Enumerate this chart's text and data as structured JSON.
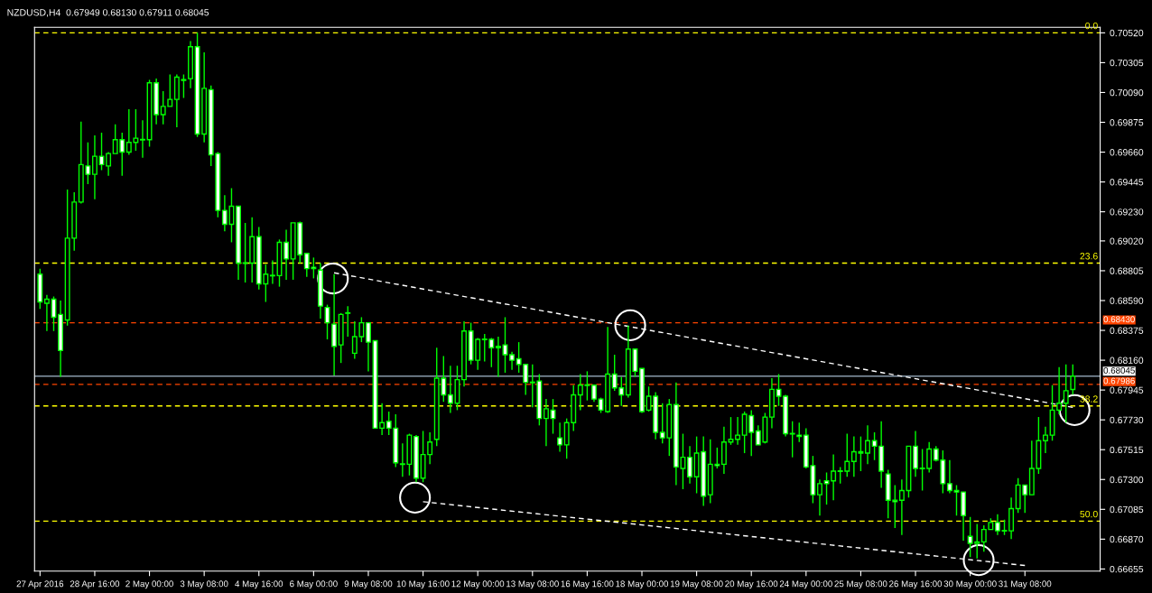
{
  "chart_data": {
    "type": "candlestick",
    "title": "NZDUSD,H4  0.67949 0.68130 0.67911 0.68045",
    "categories": [
      "27 Apr 2016",
      null,
      null,
      null,
      null,
      null,
      null,
      null,
      "28 Apr 16:00",
      null,
      null,
      null,
      null,
      null,
      null,
      null,
      "2 May 00:00",
      null,
      null,
      null,
      null,
      null,
      null,
      null,
      "3 May 08:00",
      null,
      null,
      null,
      null,
      null,
      null,
      null,
      "4 May 16:00",
      null,
      null,
      null,
      null,
      null,
      null,
      null,
      "6 May 00:00",
      null,
      null,
      null,
      null,
      null,
      null,
      null,
      "9 May 08:00",
      null,
      null,
      null,
      null,
      null,
      null,
      null,
      "10 May 16:00",
      null,
      null,
      null,
      null,
      null,
      null,
      null,
      "12 May 00:00",
      null,
      null,
      null,
      null,
      null,
      null,
      null,
      "13 May 08:00",
      null,
      null,
      null,
      null,
      null,
      null,
      null,
      "16 May 16:00",
      null,
      null,
      null,
      null,
      null,
      null,
      null,
      "18 May 00:00",
      null,
      null,
      null,
      null,
      null,
      null,
      null,
      "19 May 08:00",
      null,
      null,
      null,
      null,
      null,
      null,
      null,
      "20 May 16:00",
      null,
      null,
      null,
      null,
      null,
      null,
      null,
      "24 May 00:00",
      null,
      null,
      null,
      null,
      null,
      null,
      null,
      "25 May 08:00",
      null,
      null,
      null,
      null,
      null,
      null,
      null,
      "26 May 16:00",
      null,
      null,
      null,
      null,
      null,
      null,
      null,
      "30 May 00:00",
      null,
      null,
      null,
      null,
      null,
      null,
      null,
      "31 May 08:00",
      null,
      null,
      null,
      null,
      null,
      null,
      null
    ],
    "color": "#00ff00",
    "ohlc": [
      [
        0.6878,
        0.6882,
        0.6853,
        0.6858
      ],
      [
        0.6857,
        0.6863,
        0.6837,
        0.686
      ],
      [
        0.686,
        0.6862,
        0.6837,
        0.6847
      ],
      [
        0.6849,
        0.6859,
        0.6804,
        0.6823
      ],
      [
        0.6845,
        0.6939,
        0.6841,
        0.6904
      ],
      [
        0.6904,
        0.6937,
        0.6895,
        0.693
      ],
      [
        0.693,
        0.6988,
        0.6929,
        0.6957
      ],
      [
        0.6956,
        0.6973,
        0.6943,
        0.695
      ],
      [
        0.695,
        0.6978,
        0.6932,
        0.6963
      ],
      [
        0.6963,
        0.698,
        0.6953,
        0.6957
      ],
      [
        0.6956,
        0.6966,
        0.6949,
        0.6965
      ],
      [
        0.6965,
        0.6986,
        0.6965,
        0.6975
      ],
      [
        0.6975,
        0.698,
        0.6949,
        0.6966
      ],
      [
        0.6966,
        0.6997,
        0.6964,
        0.6973
      ],
      [
        0.6973,
        0.6997,
        0.6967,
        0.6976
      ],
      [
        0.6975,
        0.6989,
        0.6962,
        0.6975
      ],
      [
        0.6975,
        0.7018,
        0.697,
        0.7016
      ],
      [
        0.7016,
        0.7019,
        0.6986,
        0.6993
      ],
      [
        0.6993,
        0.701,
        0.6986,
        0.6999
      ],
      [
        0.6999,
        0.7022,
        0.6999,
        0.7004
      ],
      [
        0.7004,
        0.7022,
        0.6984,
        0.702
      ],
      [
        0.7018,
        0.7022,
        0.7005,
        0.7018
      ],
      [
        0.7019,
        0.7046,
        0.7012,
        0.7042
      ],
      [
        0.7042,
        0.7052,
        0.6977,
        0.6979
      ],
      [
        0.6979,
        0.7038,
        0.6973,
        0.7012
      ],
      [
        0.7011,
        0.7014,
        0.6956,
        0.6964
      ],
      [
        0.6965,
        0.6966,
        0.6919,
        0.6924
      ],
      [
        0.6924,
        0.6935,
        0.6909,
        0.6914
      ],
      [
        0.6914,
        0.694,
        0.6901,
        0.6927
      ],
      [
        0.6927,
        0.6927,
        0.6874,
        0.6886
      ],
      [
        0.6886,
        0.6915,
        0.6872,
        0.6886
      ],
      [
        0.6886,
        0.6919,
        0.6872,
        0.6905
      ],
      [
        0.6905,
        0.6912,
        0.6867,
        0.6871
      ],
      [
        0.6871,
        0.6885,
        0.6858,
        0.6878
      ],
      [
        0.6877,
        0.6888,
        0.6871,
        0.6877
      ],
      [
        0.6877,
        0.6903,
        0.6869,
        0.6901
      ],
      [
        0.6901,
        0.691,
        0.6874,
        0.6889
      ],
      [
        0.6889,
        0.6915,
        0.6874,
        0.6915
      ],
      [
        0.6915,
        0.6916,
        0.6886,
        0.6892
      ],
      [
        0.6893,
        0.6893,
        0.6876,
        0.6882
      ],
      [
        0.6883,
        0.689,
        0.6875,
        0.6882
      ],
      [
        0.6881,
        0.6886,
        0.6846,
        0.6855
      ],
      [
        0.6854,
        0.6856,
        0.6831,
        0.6843
      ],
      [
        0.6842,
        0.6878,
        0.6805,
        0.6826
      ],
      [
        0.6827,
        0.685,
        0.6814,
        0.6849
      ],
      [
        0.685,
        0.6855,
        0.6833,
        0.685
      ],
      [
        0.6821,
        0.6844,
        0.6817,
        0.6833
      ],
      [
        0.6833,
        0.6847,
        0.6829,
        0.6843
      ],
      [
        0.6843,
        0.6843,
        0.6808,
        0.6829
      ],
      [
        0.683,
        0.683,
        0.6767,
        0.6767
      ],
      [
        0.6767,
        0.6785,
        0.6762,
        0.6771
      ],
      [
        0.6772,
        0.6779,
        0.6762,
        0.6767
      ],
      [
        0.6767,
        0.6777,
        0.6739,
        0.6742
      ],
      [
        0.6741,
        0.6756,
        0.6732,
        0.6741
      ],
      [
        0.6741,
        0.6763,
        0.6733,
        0.6762
      ],
      [
        0.6761,
        0.6762,
        0.6728,
        0.6731
      ],
      [
        0.6731,
        0.6765,
        0.6728,
        0.6748
      ],
      [
        0.6748,
        0.6764,
        0.6741,
        0.6757
      ],
      [
        0.6759,
        0.6825,
        0.6754,
        0.6803
      ],
      [
        0.6803,
        0.6819,
        0.6786,
        0.6791
      ],
      [
        0.6791,
        0.6812,
        0.6778,
        0.6785
      ],
      [
        0.6785,
        0.6812,
        0.678,
        0.6802
      ],
      [
        0.6802,
        0.6844,
        0.6797,
        0.6837
      ],
      [
        0.6837,
        0.6843,
        0.6813,
        0.6816
      ],
      [
        0.6816,
        0.6832,
        0.6809,
        0.6831
      ],
      [
        0.6831,
        0.6835,
        0.6815,
        0.6831
      ],
      [
        0.6831,
        0.6832,
        0.6811,
        0.6825
      ],
      [
        0.6826,
        0.6833,
        0.6804,
        0.6825
      ],
      [
        0.6827,
        0.6847,
        0.6807,
        0.682
      ],
      [
        0.682,
        0.6822,
        0.6809,
        0.6816
      ],
      [
        0.6817,
        0.6829,
        0.6807,
        0.6813
      ],
      [
        0.6813,
        0.6813,
        0.6791,
        0.68
      ],
      [
        0.68,
        0.6813,
        0.6782,
        0.68
      ],
      [
        0.6801,
        0.6806,
        0.6769,
        0.6774
      ],
      [
        0.6774,
        0.6788,
        0.6754,
        0.6781
      ],
      [
        0.678,
        0.6788,
        0.6763,
        0.6774
      ],
      [
        0.676,
        0.6771,
        0.675,
        0.6755
      ],
      [
        0.6755,
        0.6774,
        0.6745,
        0.6771
      ],
      [
        0.6771,
        0.6798,
        0.6765,
        0.6791
      ],
      [
        0.6791,
        0.6806,
        0.678,
        0.6798
      ],
      [
        0.6798,
        0.6808,
        0.6787,
        0.6798
      ],
      [
        0.6798,
        0.6798,
        0.6786,
        0.6788
      ],
      [
        0.6788,
        0.6789,
        0.6778,
        0.678
      ],
      [
        0.6779,
        0.684,
        0.6778,
        0.6806
      ],
      [
        0.6806,
        0.682,
        0.6794,
        0.6796
      ],
      [
        0.6796,
        0.6804,
        0.6783,
        0.6791
      ],
      [
        0.6791,
        0.6841,
        0.6789,
        0.6824
      ],
      [
        0.6824,
        0.6824,
        0.6804,
        0.6808
      ],
      [
        0.681,
        0.681,
        0.6778,
        0.6779
      ],
      [
        0.678,
        0.6797,
        0.6779,
        0.679
      ],
      [
        0.679,
        0.6793,
        0.6759,
        0.6764
      ],
      [
        0.6764,
        0.6785,
        0.6756,
        0.676
      ],
      [
        0.676,
        0.6788,
        0.6747,
        0.6784
      ],
      [
        0.6784,
        0.68,
        0.6726,
        0.6739
      ],
      [
        0.6738,
        0.6763,
        0.6723,
        0.6746
      ],
      [
        0.6746,
        0.6754,
        0.6727,
        0.6732
      ],
      [
        0.6732,
        0.6761,
        0.672,
        0.6749
      ],
      [
        0.675,
        0.6761,
        0.6711,
        0.6718
      ],
      [
        0.6719,
        0.6759,
        0.6713,
        0.6741
      ],
      [
        0.6741,
        0.6753,
        0.6738,
        0.674
      ],
      [
        0.6741,
        0.6768,
        0.6734,
        0.6757
      ],
      [
        0.6757,
        0.6775,
        0.6755,
        0.6759
      ],
      [
        0.6759,
        0.6775,
        0.6755,
        0.6762
      ],
      [
        0.6762,
        0.6779,
        0.6749,
        0.6777
      ],
      [
        0.6776,
        0.678,
        0.6747,
        0.6764
      ],
      [
        0.6765,
        0.6769,
        0.6755,
        0.6755
      ],
      [
        0.6757,
        0.6778,
        0.6756,
        0.6775
      ],
      [
        0.6775,
        0.6803,
        0.6767,
        0.6795
      ],
      [
        0.6795,
        0.6806,
        0.6783,
        0.679
      ],
      [
        0.679,
        0.6791,
        0.6761,
        0.6763
      ],
      [
        0.6763,
        0.6772,
        0.6746,
        0.6763
      ],
      [
        0.6762,
        0.6771,
        0.6757,
        0.6761
      ],
      [
        0.6762,
        0.6767,
        0.6738,
        0.6739
      ],
      [
        0.674,
        0.6747,
        0.6713,
        0.6719
      ],
      [
        0.6719,
        0.673,
        0.6704,
        0.6727
      ],
      [
        0.6729,
        0.6735,
        0.6712,
        0.6727
      ],
      [
        0.6729,
        0.6748,
        0.6715,
        0.6736
      ],
      [
        0.6736,
        0.6739,
        0.6727,
        0.6736
      ],
      [
        0.6736,
        0.6763,
        0.6732,
        0.6743
      ],
      [
        0.6743,
        0.6761,
        0.6732,
        0.675
      ],
      [
        0.6749,
        0.6761,
        0.6736,
        0.675
      ],
      [
        0.6749,
        0.6769,
        0.6741,
        0.6758
      ],
      [
        0.6758,
        0.6764,
        0.6744,
        0.6754
      ],
      [
        0.6754,
        0.6772,
        0.6724,
        0.6736
      ],
      [
        0.6734,
        0.6737,
        0.6702,
        0.6715
      ],
      [
        0.6715,
        0.6726,
        0.6695,
        0.6714
      ],
      [
        0.6715,
        0.673,
        0.669,
        0.6722
      ],
      [
        0.6722,
        0.6754,
        0.6717,
        0.6754
      ],
      [
        0.6754,
        0.6765,
        0.6732,
        0.6738
      ],
      [
        0.6738,
        0.6752,
        0.6722,
        0.6738
      ],
      [
        0.6738,
        0.6757,
        0.6735,
        0.6752
      ],
      [
        0.6752,
        0.6754,
        0.6743,
        0.6744
      ],
      [
        0.6744,
        0.6751,
        0.672,
        0.6727
      ],
      [
        0.6727,
        0.6744,
        0.672,
        0.6722
      ],
      [
        0.6722,
        0.6726,
        0.6704,
        0.6721
      ],
      [
        0.6721,
        0.6721,
        0.6686,
        0.6704
      ],
      [
        0.6689,
        0.6703,
        0.6674,
        0.6684
      ],
      [
        0.6684,
        0.6698,
        0.6673,
        0.6685
      ],
      [
        0.6685,
        0.6697,
        0.6678,
        0.6694
      ],
      [
        0.6694,
        0.6702,
        0.6694,
        0.6699
      ],
      [
        0.6699,
        0.6705,
        0.669,
        0.6693
      ],
      [
        0.6693,
        0.6701,
        0.669,
        0.6693
      ],
      [
        0.6693,
        0.6717,
        0.6687,
        0.6709
      ],
      [
        0.6709,
        0.6731,
        0.6706,
        0.6726
      ],
      [
        0.6726,
        0.6726,
        0.6706,
        0.6719
      ],
      [
        0.6719,
        0.6758,
        0.6719,
        0.6738
      ],
      [
        0.6738,
        0.6775,
        0.6734,
        0.6758
      ],
      [
        0.6758,
        0.6768,
        0.6749,
        0.6762
      ],
      [
        0.6762,
        0.6798,
        0.6758,
        0.678
      ],
      [
        0.678,
        0.6811,
        0.6777,
        0.6785
      ],
      [
        0.6785,
        0.6813,
        0.6771,
        0.6794
      ],
      [
        0.67949,
        0.6813,
        0.67911,
        0.68045
      ]
    ],
    "series": [
      {
        "type": "line",
        "color": "#ffffff",
        "line_style": "dashed",
        "values": [
          null,
          null,
          null,
          null,
          null,
          null,
          null,
          null,
          null,
          null,
          null,
          null,
          null,
          null,
          null,
          null,
          null,
          null,
          null,
          null,
          null,
          null,
          null,
          null,
          null,
          null,
          null,
          null,
          null,
          null,
          null,
          null,
          null,
          null,
          null,
          null,
          null,
          null,
          null,
          null,
          null,
          null,
          null,
          0.6879,
          null,
          null,
          null,
          null,
          null,
          null,
          null,
          null,
          null,
          null,
          null,
          null,
          null,
          null,
          null,
          null,
          null,
          null,
          null,
          null,
          null,
          null,
          null,
          null,
          null,
          null,
          null,
          null,
          null,
          null,
          null,
          null,
          null,
          null,
          null,
          null,
          null,
          null,
          null,
          null,
          null,
          null,
          null,
          null,
          null,
          null,
          null,
          null,
          null,
          null,
          null,
          null,
          null,
          null,
          null,
          null,
          null,
          null,
          null,
          null,
          null,
          null,
          null,
          null,
          null,
          null,
          null,
          null,
          null,
          null,
          null,
          null,
          null,
          null,
          null,
          null,
          null,
          null,
          null,
          null,
          null,
          null,
          null,
          null,
          null,
          null,
          null,
          null,
          null,
          null,
          null,
          null,
          null,
          null,
          null,
          null,
          null,
          null,
          null,
          null,
          null,
          null,
          null,
          null,
          null,
          null,
          null,
          0.6782
        ]
      },
      {
        "type": "line",
        "color": "#ffffff",
        "line_style": "dashed",
        "values": [
          null,
          null,
          null,
          null,
          null,
          null,
          null,
          null,
          null,
          null,
          null,
          null,
          null,
          null,
          null,
          null,
          null,
          null,
          null,
          null,
          null,
          null,
          null,
          null,
          null,
          null,
          null,
          null,
          null,
          null,
          null,
          null,
          null,
          null,
          null,
          null,
          null,
          null,
          null,
          null,
          null,
          null,
          null,
          null,
          null,
          null,
          null,
          null,
          null,
          null,
          null,
          null,
          null,
          null,
          null,
          null,
          0.6714,
          null,
          null,
          null,
          null,
          null,
          null,
          null,
          null,
          null,
          null,
          null,
          null,
          null,
          null,
          null,
          null,
          null,
          null,
          null,
          null,
          null,
          null,
          null,
          null,
          null,
          null,
          null,
          null,
          null,
          null,
          null,
          null,
          null,
          null,
          null,
          null,
          null,
          null,
          null,
          null,
          null,
          null,
          null,
          null,
          null,
          null,
          null,
          null,
          null,
          null,
          null,
          null,
          null,
          null,
          null,
          null,
          null,
          null,
          null,
          null,
          null,
          null,
          null,
          null,
          null,
          null,
          null,
          null,
          null,
          null,
          null,
          null,
          null,
          null,
          null,
          null,
          null,
          null,
          null,
          null,
          null,
          null,
          null,
          null,
          null,
          null,
          null,
          0.6668,
          null,
          null,
          null,
          null,
          null,
          null,
          null
        ]
      }
    ],
    "ylim": [
      0.6664,
      0.7056
    ],
    "yticks": [
      {
        "value": 0.7052,
        "label": "0.70520"
      },
      {
        "value": 0.70305,
        "label": "0.70305"
      },
      {
        "value": 0.7009,
        "label": "0.70090"
      },
      {
        "value": 0.69875,
        "label": "0.69875"
      },
      {
        "value": 0.6966,
        "label": "0.69660"
      },
      {
        "value": 0.69445,
        "label": "0.69445"
      },
      {
        "value": 0.6923,
        "label": "0.69230"
      },
      {
        "value": 0.6902,
        "label": "0.69020"
      },
      {
        "value": 0.68805,
        "label": "0.68805"
      },
      {
        "value": 0.6859,
        "label": "0.68590"
      },
      {
        "value": 0.68375,
        "label": "0.68375"
      },
      {
        "value": 0.6816,
        "label": "0.68160"
      },
      {
        "value": 0.67945,
        "label": "0.67945"
      },
      {
        "value": 0.6773,
        "label": "0.67730"
      },
      {
        "value": 0.67515,
        "label": "0.67515"
      },
      {
        "value": 0.673,
        "label": "0.67300"
      },
      {
        "value": 0.67085,
        "label": "0.67085"
      },
      {
        "value": 0.6687,
        "label": "0.66870"
      },
      {
        "value": 0.66655,
        "label": "0.66655"
      }
    ],
    "ref_lines": [
      {
        "axis": "y",
        "value": 0.7052,
        "color": "#ffff00",
        "line_style": "dashed"
      },
      {
        "axis": "y",
        "value": 0.6886,
        "color": "#ffff00",
        "line_style": "dashed"
      },
      {
        "axis": "y",
        "value": 0.6783,
        "color": "#ffff00",
        "line_style": "dashed"
      },
      {
        "axis": "y",
        "value": 0.67,
        "color": "#ffff00",
        "line_style": "dashed"
      },
      {
        "axis": "y",
        "value": 0.6843,
        "label": "0.68430",
        "color": "#ff4500",
        "line_style": "dashed"
      },
      {
        "axis": "y",
        "value": 0.67986,
        "label": "0.67986",
        "color": "#ff4500",
        "line_style": "dashed"
      },
      {
        "axis": "y",
        "value": 0.68045,
        "label": "0.68045",
        "color": "#8899aa",
        "line_style": "solid"
      }
    ],
    "annotations": [
      {
        "text": "0.0",
        "y": 0.7052
      },
      {
        "text": "23.6",
        "y": 0.6886
      },
      {
        "text": "38.2",
        "y": 0.6783
      },
      {
        "text": "50.0",
        "y": 0.67
      }
    ]
  }
}
